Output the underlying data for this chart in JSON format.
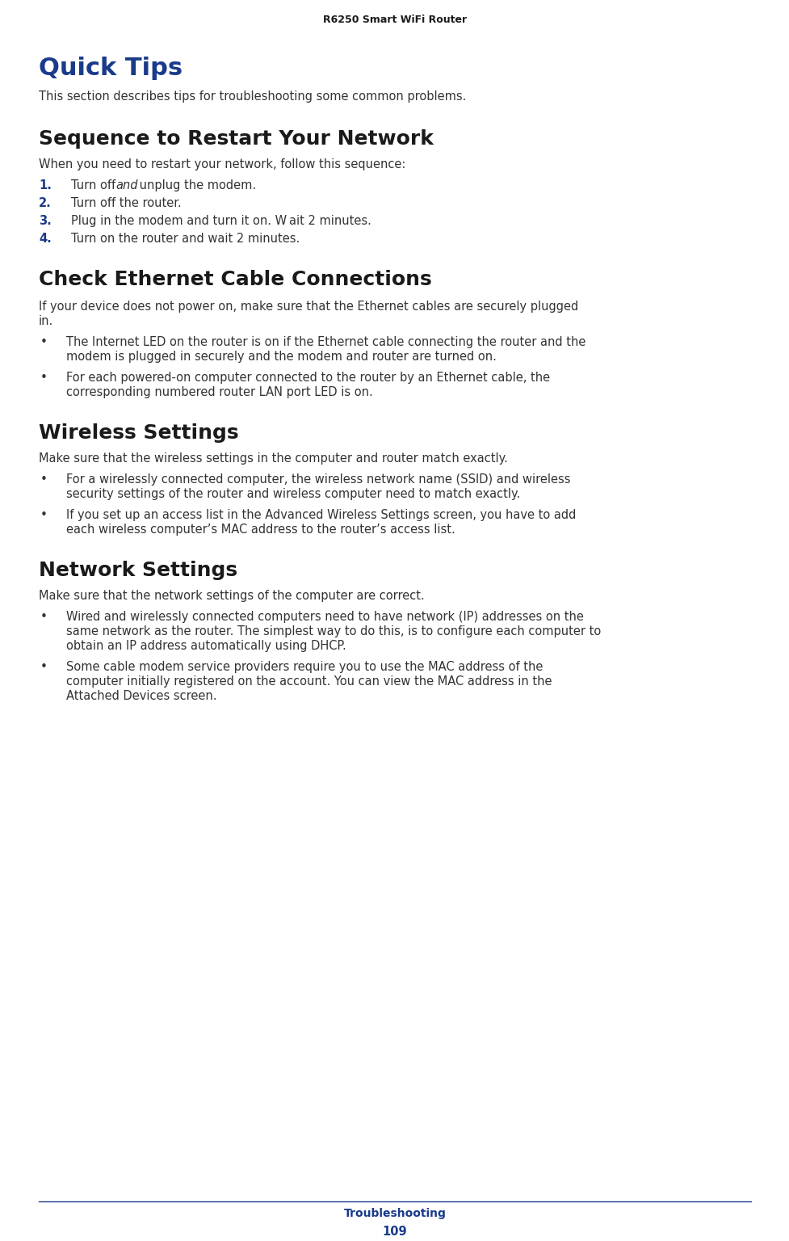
{
  "page_bg": "#ffffff",
  "header_text": "R6250 Smart WiFi Router",
  "header_color": "#1a1a1a",
  "footer_line_color": "#1a3a8a",
  "footer_text": "Troubleshooting",
  "footer_page": "109",
  "footer_color": "#1a3a8a",
  "quick_tips_title": "Quick Tips",
  "quick_tips_color": "#1a3a8a",
  "section2_title": "Sequence to Restart Your Network",
  "section3_title": "Check Ethernet Cable Connections",
  "section4_title": "Wireless Settings",
  "section5_title": "Network Settings",
  "section_title_color": "#1a1a1a",
  "body_color": "#333333",
  "num_color": "#1a3a8a",
  "bullet_color": "#333333"
}
